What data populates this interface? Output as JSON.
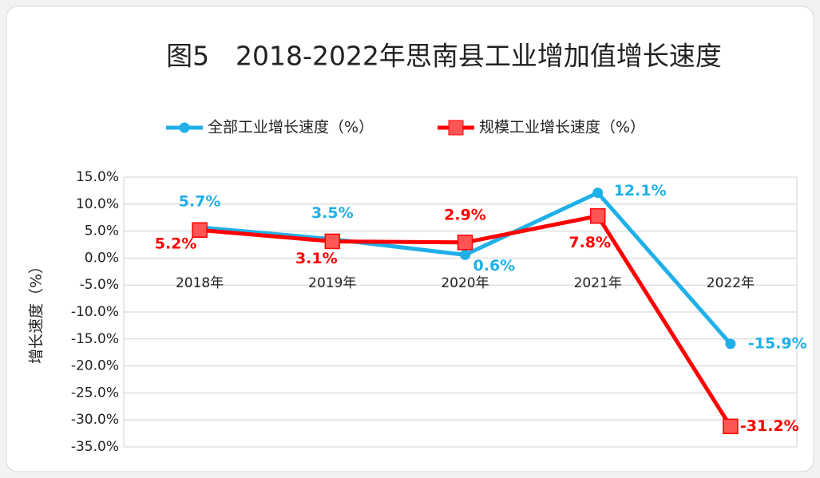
{
  "chart_data": {
    "type": "line",
    "title": "图5　2018-2022年思南县工业增加值增长速度",
    "y_label": "增长速度（%）",
    "categories": [
      "2018年",
      "2019年",
      "2020年",
      "2021年",
      "2022年"
    ],
    "series": [
      {
        "name": "全部工业增长速度（%）",
        "color": "#1fb0e8",
        "marker": "circle",
        "values": [
          5.7,
          3.5,
          0.6,
          12.1,
          -15.9
        ],
        "value_labels": [
          "5.7%",
          "3.5%",
          "0.6%",
          "12.1%",
          "-15.9%"
        ]
      },
      {
        "name": "规模工业增长速度（%）",
        "color": "#ff0000",
        "marker": "square",
        "values": [
          5.2,
          3.1,
          2.9,
          7.8,
          -31.2
        ],
        "value_labels": [
          "5.2%",
          "3.1%",
          "2.9%",
          "7.8%",
          "-31.2%"
        ]
      }
    ],
    "ylim": [
      -35,
      15
    ],
    "yticks": [
      {
        "value": 15,
        "label": "15.0%"
      },
      {
        "value": 10,
        "label": "10.0%"
      },
      {
        "value": 5,
        "label": "5.0%"
      },
      {
        "value": 0,
        "label": "0.0%"
      },
      {
        "value": -5,
        "label": "-5.0%"
      },
      {
        "value": -10,
        "label": "-10.0%"
      },
      {
        "value": -15,
        "label": "-15.0%"
      },
      {
        "value": -20,
        "label": "-20.0%"
      },
      {
        "value": -25,
        "label": "-25.0%"
      },
      {
        "value": -30,
        "label": "-30.0%"
      },
      {
        "value": -35,
        "label": "-35.0%"
      }
    ],
    "grid": true,
    "legend": "top"
  }
}
